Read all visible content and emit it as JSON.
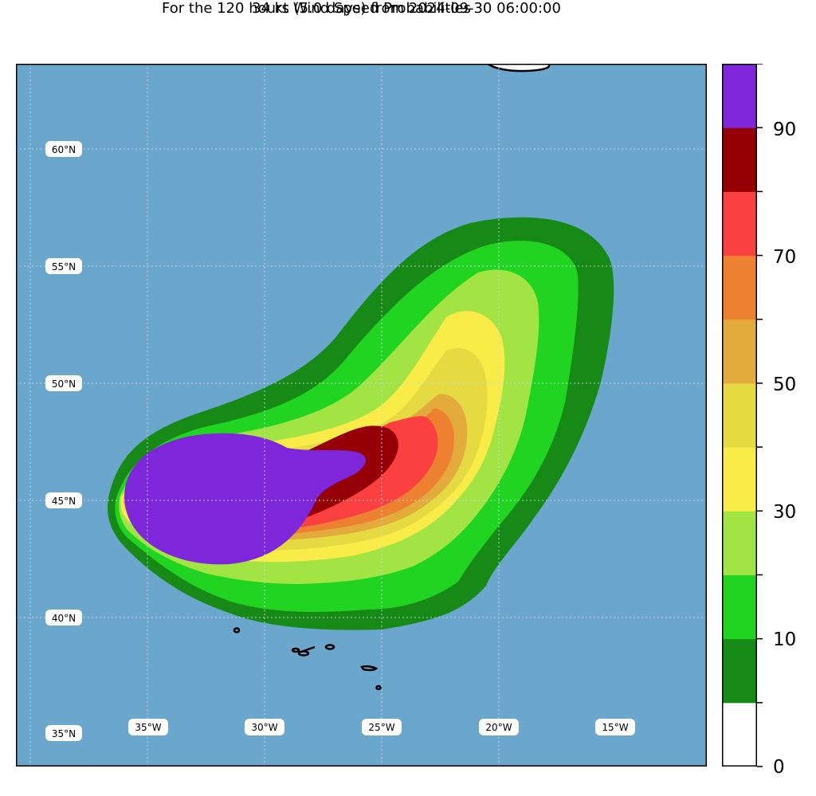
{
  "title_line1": "34 kt Wind Speed Probabilities",
  "title_line2": "For the 120 hours (5.0 days) from 2024-09-30 06:00:00",
  "latitude_labels": [
    "60°N",
    "55°N",
    "50°N",
    "45°N",
    "40°N",
    "35°N"
  ],
  "longitude_labels": [
    "35°W",
    "30°W",
    "25°W",
    "20°W",
    "15°W"
  ],
  "colorbar": {
    "tick_labels": [
      "0",
      "10",
      "30",
      "50",
      "70",
      "90"
    ],
    "bins": [
      {
        "range": [
          0,
          5
        ],
        "color": "#ffffff"
      },
      {
        "range": [
          5,
          10
        ],
        "color": "#168916"
      },
      {
        "range": [
          10,
          20
        ],
        "color": "#22d422"
      },
      {
        "range": [
          20,
          30
        ],
        "color": "#a3e445"
      },
      {
        "range": [
          30,
          40
        ],
        "color": "#f9eb48"
      },
      {
        "range": [
          40,
          50
        ],
        "color": "#e6da42"
      },
      {
        "range": [
          50,
          60
        ],
        "color": "#e3ab3b"
      },
      {
        "range": [
          60,
          70
        ],
        "color": "#ee8131"
      },
      {
        "range": [
          70,
          80
        ],
        "color": "#fa4040"
      },
      {
        "range": [
          80,
          90
        ],
        "color": "#940006"
      },
      {
        "range": [
          90,
          100
        ],
        "color": "#7e26d9"
      }
    ]
  },
  "ocean_color": "#6ba6cc"
}
